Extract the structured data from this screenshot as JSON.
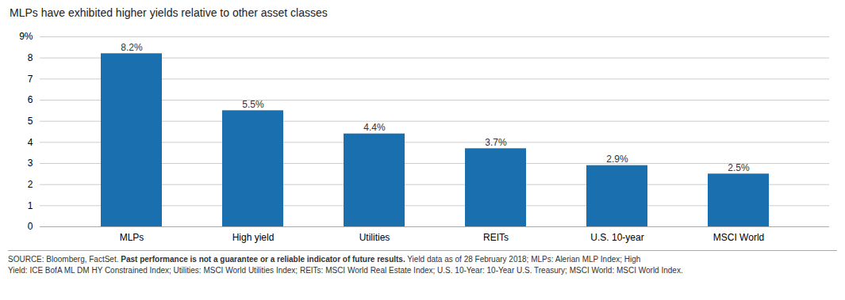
{
  "chart_data": {
    "type": "bar",
    "title": "MLPs have exhibited higher yields relative to other asset classes",
    "categories": [
      "MLPs",
      "High yield",
      "Utilities",
      "REITs",
      "U.S. 10-year",
      "MSCI World"
    ],
    "values": [
      8.2,
      5.5,
      4.4,
      3.7,
      2.9,
      2.5
    ],
    "value_labels": [
      "8.2%",
      "5.5%",
      "4.4%",
      "3.7%",
      "2.9%",
      "2.5%"
    ],
    "data_labels": true,
    "color": "#1a6faf",
    "ylim": [
      0,
      9
    ],
    "yticks": [
      0,
      1,
      2,
      3,
      4,
      5,
      6,
      7,
      8,
      {
        "value": 9,
        "label": "9%"
      }
    ],
    "grid": true,
    "annotations": [
      "SOURCE: Bloomberg, FactSet. ",
      "Past performance is not a guarantee or a reliable indicator of future results.",
      " Yield data as of 28 February 2018; MLPs: Alerian MLP Index; High",
      "Yield: ICE BofA ML DM HY Constrained Index; Utilities: MSCI World Utilities Index; REITs: MSCI World Real Estate Index; U.S. 10-Year: 10-Year U.S. Treasury; MSCI World: MSCI World Index."
    ]
  }
}
